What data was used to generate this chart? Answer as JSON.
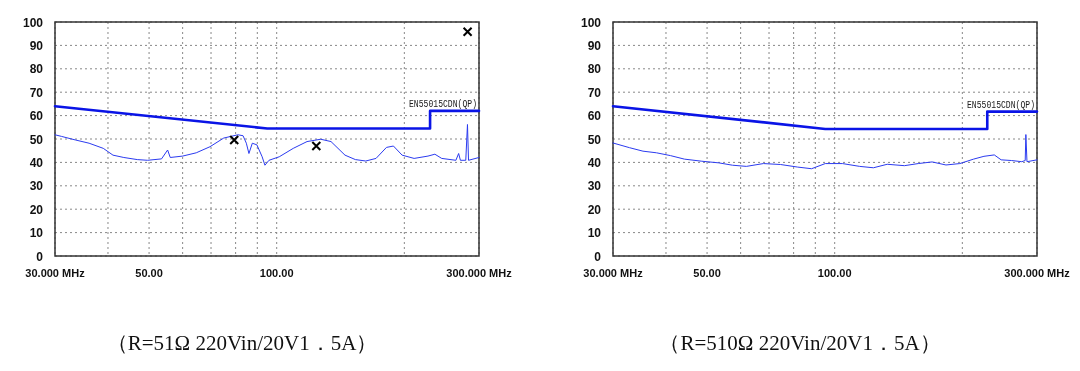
{
  "chart_data": [
    {
      "type": "line",
      "log": "x",
      "grid": true,
      "xlim": [
        30,
        300
      ],
      "ylim": [
        0,
        100
      ],
      "xticks": [
        {
          "value": 30,
          "label": "30.000 MHz"
        },
        {
          "value": 40,
          "label": null
        },
        {
          "value": 50,
          "label": "50.00"
        },
        {
          "value": 60,
          "label": null
        },
        {
          "value": 70,
          "label": null
        },
        {
          "value": 80,
          "label": null
        },
        {
          "value": 90,
          "label": null
        },
        {
          "value": 100,
          "label": "100.00"
        },
        {
          "value": 200,
          "label": null
        },
        {
          "value": 300,
          "label": "300.000 MHz"
        }
      ],
      "yticks": [
        0,
        10,
        20,
        30,
        40,
        50,
        60,
        70,
        80,
        90,
        100
      ],
      "annotations": [
        "（R=51Ω  220Vin/20V1．5A）"
      ],
      "series": [
        {
          "name": "EN55015CDN(QP)",
          "color": "#0a14e6",
          "x": [
            30,
            95,
            230,
            230,
            300
          ],
          "values": [
            64,
            54.5,
            54.5,
            62,
            62
          ]
        },
        {
          "color": "#2b3bf0",
          "x": [
            30,
            31.1,
            33.5,
            36.1,
            39.0,
            41.1,
            43.6,
            46.9,
            49.6,
            53.5,
            55.3,
            56.1,
            60.0,
            64.6,
            69.6,
            75.0,
            81.0,
            83.3,
            84.8,
            86.0,
            87.6,
            89.8,
            92.4,
            93.8,
            95.9,
            101.4,
            109.4,
            117.9,
            127.0,
            134.3,
            144.9,
            153.3,
            162.2,
            171.5,
            181.5,
            188.5,
            197.6,
            210.9,
            227.4,
            236.1,
            245.0,
            264.6,
            268.6,
            271.2,
            279.2,
            281.8,
            283.4,
            300
          ],
          "values": [
            51.8,
            51.1,
            49.6,
            48.2,
            46.0,
            43.1,
            42.1,
            41.2,
            40.9,
            41.5,
            45.3,
            42.1,
            42.7,
            44.1,
            46.7,
            50.4,
            51.8,
            51.4,
            48.2,
            43.8,
            48.2,
            47.5,
            42.4,
            38.8,
            40.9,
            42.4,
            46.0,
            48.9,
            49.9,
            48.9,
            43.1,
            41.2,
            40.6,
            41.7,
            46.4,
            47.0,
            43.1,
            41.7,
            42.7,
            43.5,
            41.7,
            40.9,
            43.8,
            40.9,
            40.9,
            56.2,
            40.9,
            42.1
          ]
        },
        {
          "type": "scatter",
          "marker": "cross",
          "color": "#000000",
          "x": [
            79.4,
            124,
            282
          ],
          "values": [
            49.6,
            47.0,
            95.8
          ]
        }
      ]
    },
    {
      "type": "line",
      "log": "x",
      "grid": true,
      "xlim": [
        30,
        300
      ],
      "ylim": [
        0,
        100
      ],
      "xticks": [
        {
          "value": 30,
          "label": "30.000 MHz"
        },
        {
          "value": 40,
          "label": null
        },
        {
          "value": 50,
          "label": "50.00"
        },
        {
          "value": 60,
          "label": null
        },
        {
          "value": 70,
          "label": null
        },
        {
          "value": 80,
          "label": null
        },
        {
          "value": 90,
          "label": null
        },
        {
          "value": 100,
          "label": "100.00"
        },
        {
          "value": 200,
          "label": null
        },
        {
          "value": 300,
          "label": "300.000 MHz"
        }
      ],
      "yticks": [
        0,
        10,
        20,
        30,
        40,
        50,
        60,
        70,
        80,
        90,
        100
      ],
      "annotations": [
        "（R=510Ω  220Vin/20V1．5A）"
      ],
      "series": [
        {
          "name": "EN55015CDN(QP)",
          "color": "#0a14e6",
          "x": [
            30,
            95,
            229,
            229,
            300
          ],
          "values": [
            64,
            54.3,
            54.3,
            61.7,
            61.7
          ]
        },
        {
          "color": "#2b3bf0",
          "x": [
            30,
            32.8,
            35.3,
            38.0,
            41.0,
            44.2,
            48.6,
            53.3,
            57.4,
            61.9,
            67.9,
            74.5,
            81.8,
            88.2,
            95.0,
            104.3,
            114.5,
            123.4,
            133.0,
            146.0,
            157.4,
            169.7,
            183.0,
            197.3,
            212.6,
            224.9,
            237.9,
            246.9,
            261.2,
            276.2,
            281.4,
            282.4,
            284.1,
            300
          ],
          "values": [
            48.3,
            46.3,
            44.8,
            44.1,
            42.9,
            41.4,
            40.5,
            39.8,
            38.8,
            38.3,
            39.5,
            39.1,
            38.0,
            37.3,
            39.5,
            39.5,
            38.3,
            37.7,
            39.2,
            38.6,
            39.5,
            40.2,
            38.9,
            39.5,
            41.4,
            42.6,
            43.2,
            41.1,
            40.8,
            40.3,
            40.8,
            51.9,
            40.3,
            41.1
          ]
        }
      ]
    }
  ]
}
